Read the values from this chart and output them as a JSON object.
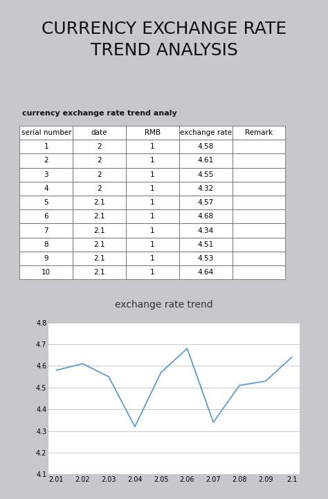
{
  "title_line1": "CURRENCY EXCHANGE RATE",
  "title_line2": "TREND ANALYSIS",
  "title_fontsize": 18,
  "background_color": "#c8c8cc",
  "panel_color": "#ffffff",
  "table_title": "currency exchange rate trend analy",
  "table_title_fontsize": 8,
  "table_headers": [
    "serial number",
    "date",
    "RMB",
    "exchange rate",
    "Remark"
  ],
  "table_rows": [
    [
      "1",
      "2",
      "1",
      "4.58",
      ""
    ],
    [
      "2",
      "2",
      "1",
      "4.61",
      ""
    ],
    [
      "3",
      "2",
      "1",
      "4.55",
      ""
    ],
    [
      "4",
      "2",
      "1",
      "4.32",
      ""
    ],
    [
      "5",
      "2.1",
      "1",
      "4.57",
      ""
    ],
    [
      "6",
      "2.1",
      "1",
      "4.68",
      ""
    ],
    [
      "7",
      "2.1",
      "1",
      "4.34",
      ""
    ],
    [
      "8",
      "2.1",
      "1",
      "4.51",
      ""
    ],
    [
      "9",
      "2.1",
      "1",
      "4.53",
      ""
    ],
    [
      "10",
      "2.1",
      "1",
      "4.64",
      ""
    ]
  ],
  "chart_title": "exchange rate trend",
  "chart_title_fontsize": 10,
  "x_values": [
    2.01,
    2.02,
    2.03,
    2.04,
    2.05,
    2.06,
    2.07,
    2.08,
    2.09,
    2.1
  ],
  "x_labels": [
    "2.01",
    "2.02",
    "2.03",
    "2.04",
    "2.05",
    "2.06",
    "2.07",
    "2.08",
    "2.09",
    "2.1"
  ],
  "y_values": [
    4.58,
    4.61,
    4.55,
    4.32,
    4.57,
    4.68,
    4.34,
    4.51,
    4.53,
    4.64
  ],
  "ylim": [
    4.1,
    4.8
  ],
  "yticks": [
    4.1,
    4.2,
    4.3,
    4.4,
    4.5,
    4.6,
    4.7,
    4.8
  ],
  "line_color": "#5b9bd5",
  "grid_color": "#c8c8cc",
  "tick_fontsize": 7,
  "table_fontsize": 7.5,
  "border_color": "#555555"
}
